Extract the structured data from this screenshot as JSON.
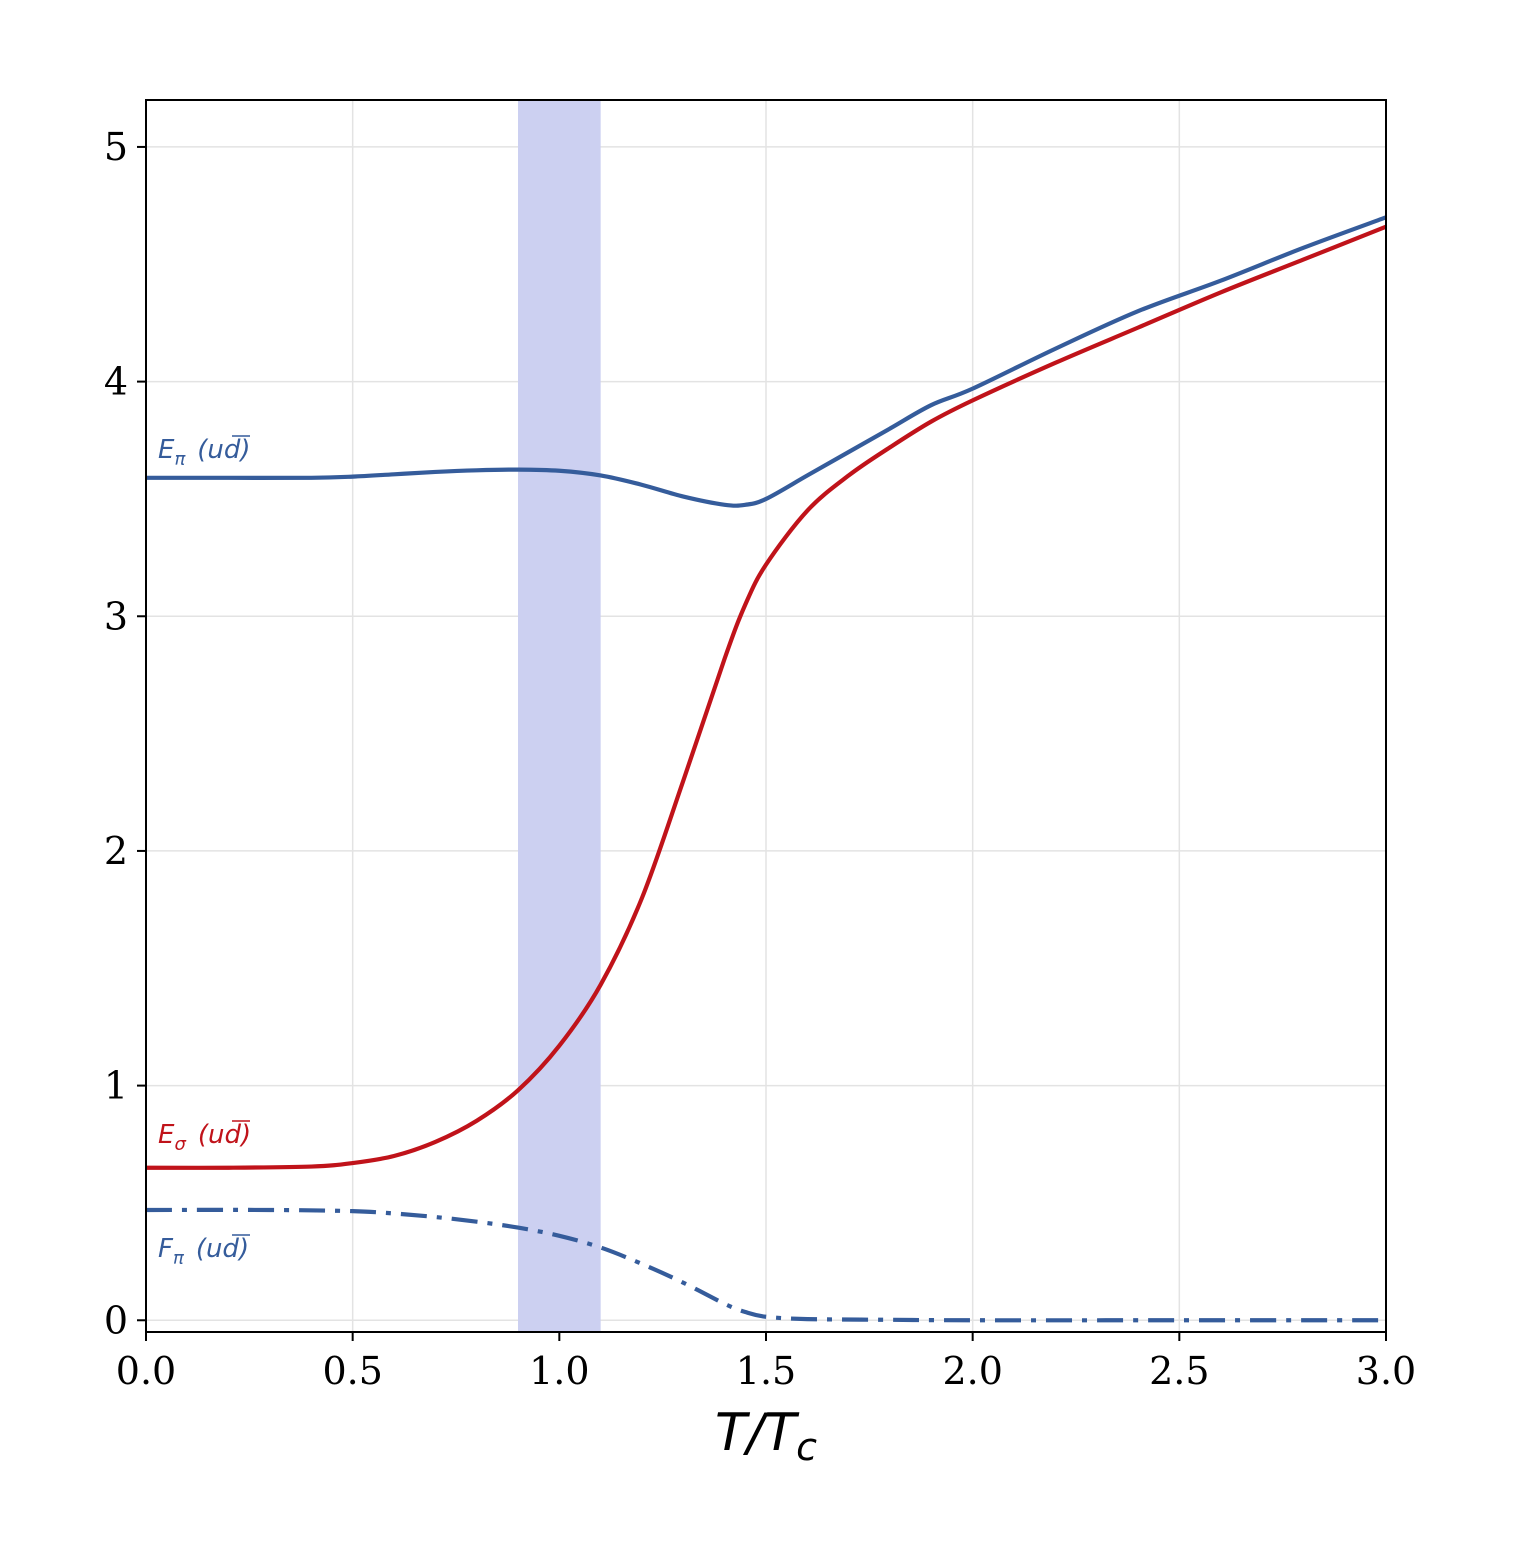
{
  "chart_data": {
    "type": "line",
    "title": "",
    "xlabel": "T/T",
    "xlabel_sub": "c",
    "ylabel": "",
    "xlim": [
      0.0,
      3.0
    ],
    "ylim": [
      -0.05,
      5.2
    ],
    "grid": true,
    "x_ticks": [
      0.0,
      0.5,
      1.0,
      1.5,
      2.0,
      2.5,
      3.0
    ],
    "x_tick_labels": [
      "0.0",
      "0.5",
      "1.0",
      "1.5",
      "2.0",
      "2.5",
      "3.0"
    ],
    "y_ticks": [
      0,
      1,
      2,
      3,
      4,
      5
    ],
    "y_tick_labels": [
      "0",
      "1",
      "2",
      "3",
      "4",
      "5"
    ],
    "shaded_band": {
      "x0": 0.9,
      "x1": 1.1,
      "color": "#ccd0f1"
    },
    "series": [
      {
        "key": "E_pi",
        "label_main": "E",
        "label_sub": "π",
        "label_rest": "(ud)",
        "color": "#355c9b",
        "style": "solid",
        "x": [
          0.0,
          0.2,
          0.4,
          0.5,
          0.6,
          0.7,
          0.8,
          0.9,
          1.0,
          1.1,
          1.2,
          1.3,
          1.4,
          1.45,
          1.5,
          1.6,
          1.7,
          1.8,
          1.9,
          2.0,
          2.2,
          2.4,
          2.6,
          2.8,
          3.0
        ],
        "y": [
          3.59,
          3.59,
          3.59,
          3.595,
          3.605,
          3.615,
          3.622,
          3.625,
          3.62,
          3.6,
          3.56,
          3.51,
          3.475,
          3.475,
          3.5,
          3.6,
          3.7,
          3.8,
          3.9,
          3.97,
          4.14,
          4.3,
          4.43,
          4.57,
          4.7
        ]
      },
      {
        "key": "E_sigma",
        "label_main": "E",
        "label_sub": "σ",
        "label_rest": "(ud)",
        "color": "#c0131a",
        "style": "solid",
        "x": [
          0.0,
          0.2,
          0.4,
          0.5,
          0.6,
          0.7,
          0.8,
          0.9,
          1.0,
          1.1,
          1.2,
          1.3,
          1.4,
          1.45,
          1.5,
          1.6,
          1.7,
          1.8,
          1.9,
          2.0,
          2.2,
          2.4,
          2.6,
          2.8,
          3.0
        ],
        "y": [
          0.65,
          0.65,
          0.655,
          0.67,
          0.7,
          0.76,
          0.85,
          0.98,
          1.17,
          1.43,
          1.8,
          2.3,
          2.82,
          3.05,
          3.22,
          3.45,
          3.6,
          3.72,
          3.83,
          3.92,
          4.08,
          4.23,
          4.38,
          4.52,
          4.66
        ]
      },
      {
        "key": "F_pi",
        "label_main": "F",
        "label_sub": "π",
        "label_rest": "(ud)",
        "color": "#355c9b",
        "style": "dashdot",
        "x": [
          0.0,
          0.3,
          0.5,
          0.6,
          0.7,
          0.8,
          0.9,
          1.0,
          1.1,
          1.2,
          1.3,
          1.4,
          1.45,
          1.5,
          1.6,
          1.8,
          2.0,
          2.5,
          3.0
        ],
        "y": [
          0.47,
          0.47,
          0.465,
          0.455,
          0.44,
          0.42,
          0.395,
          0.36,
          0.31,
          0.24,
          0.16,
          0.07,
          0.035,
          0.015,
          0.005,
          0.002,
          0.0,
          0.0,
          0.0
        ]
      }
    ]
  }
}
